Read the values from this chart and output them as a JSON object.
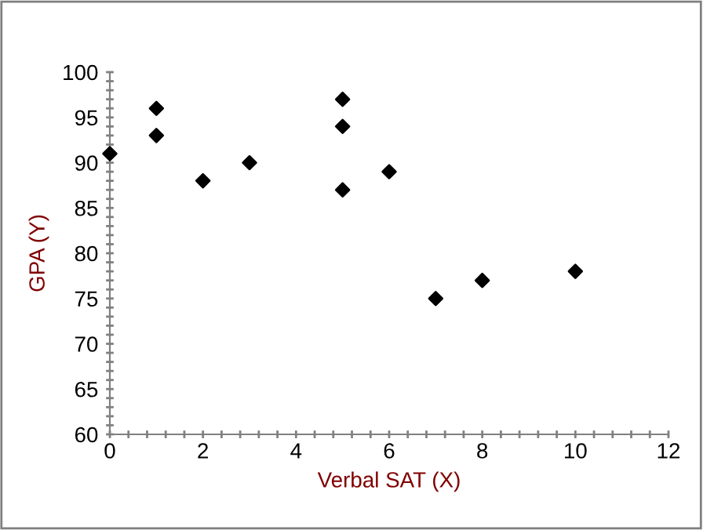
{
  "chart_data": {
    "type": "scatter",
    "xlabel": "Verbal SAT (X)",
    "ylabel": "GPA (Y)",
    "x": [
      0,
      1,
      1,
      2,
      3,
      5,
      5,
      5,
      6,
      7,
      8,
      10
    ],
    "values": [
      91,
      96,
      93,
      88,
      90,
      97,
      94,
      87,
      89,
      75,
      77,
      78
    ],
    "color": "#000000",
    "marker": "diamond",
    "grid": false,
    "legend": false,
    "xlim": [
      0,
      12
    ],
    "ylim": [
      60,
      100
    ],
    "xticks": [
      0,
      {
        "value": 0.4,
        "label": null
      },
      {
        "value": 0.8,
        "label": null
      },
      {
        "value": 1.2,
        "label": null
      },
      {
        "value": 1.6,
        "label": null
      },
      2,
      {
        "value": 2.4,
        "label": null
      },
      {
        "value": 2.8,
        "label": null
      },
      {
        "value": 3.2,
        "label": null
      },
      {
        "value": 3.6,
        "label": null
      },
      4,
      {
        "value": 4.4,
        "label": null
      },
      {
        "value": 4.8,
        "label": null
      },
      {
        "value": 5.2,
        "label": null
      },
      {
        "value": 5.6,
        "label": null
      },
      6,
      {
        "value": 6.4,
        "label": null
      },
      {
        "value": 6.8,
        "label": null
      },
      {
        "value": 7.2,
        "label": null
      },
      {
        "value": 7.6,
        "label": null
      },
      8,
      {
        "value": 8.4,
        "label": null
      },
      {
        "value": 8.8,
        "label": null
      },
      {
        "value": 9.2,
        "label": null
      },
      {
        "value": 9.6,
        "label": null
      },
      10,
      {
        "value": 10.4,
        "label": null
      },
      {
        "value": 10.8,
        "label": null
      },
      {
        "value": 11.2,
        "label": null
      },
      {
        "value": 11.6,
        "label": null
      },
      12
    ],
    "yticks": [
      60,
      {
        "value": 61,
        "label": null
      },
      {
        "value": 62,
        "label": null
      },
      {
        "value": 63,
        "label": null
      },
      {
        "value": 64,
        "label": null
      },
      65,
      {
        "value": 66,
        "label": null
      },
      {
        "value": 67,
        "label": null
      },
      {
        "value": 68,
        "label": null
      },
      {
        "value": 69,
        "label": null
      },
      70,
      {
        "value": 71,
        "label": null
      },
      {
        "value": 72,
        "label": null
      },
      {
        "value": 73,
        "label": null
      },
      {
        "value": 74,
        "label": null
      },
      75,
      {
        "value": 76,
        "label": null
      },
      {
        "value": 77,
        "label": null
      },
      {
        "value": 78,
        "label": null
      },
      {
        "value": 79,
        "label": null
      },
      80,
      {
        "value": 81,
        "label": null
      },
      {
        "value": 82,
        "label": null
      },
      {
        "value": 83,
        "label": null
      },
      {
        "value": 84,
        "label": null
      },
      85,
      {
        "value": 86,
        "label": null
      },
      {
        "value": 87,
        "label": null
      },
      {
        "value": 88,
        "label": null
      },
      {
        "value": 89,
        "label": null
      },
      90,
      {
        "value": 91,
        "label": null
      },
      {
        "value": 92,
        "label": null
      },
      {
        "value": 93,
        "label": null
      },
      {
        "value": 94,
        "label": null
      },
      95,
      {
        "value": 96,
        "label": null
      },
      {
        "value": 97,
        "label": null
      },
      {
        "value": 98,
        "label": null
      },
      {
        "value": 99,
        "label": null
      },
      100
    ]
  }
}
